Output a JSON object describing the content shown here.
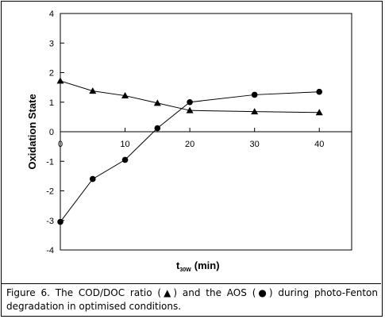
{
  "chart_data": {
    "type": "line",
    "xlabel_main": "t",
    "xlabel_sub": "30W",
    "xlabel_unit": "(min)",
    "ylabel": "Oxidation State",
    "xlim": [
      0,
      45
    ],
    "ylim": [
      -4,
      4
    ],
    "x_ticks": [
      0,
      10,
      20,
      30,
      40
    ],
    "y_ticks": [
      -4,
      -3,
      -2,
      -1,
      0,
      1,
      2,
      3,
      4
    ],
    "x_tick_labels": [
      "0",
      "10",
      "20",
      "30",
      "40"
    ],
    "y_tick_labels": [
      "-4",
      "-3",
      "-2",
      "-1",
      "0",
      "1",
      "2",
      "3",
      "4"
    ],
    "zero_line": true,
    "grid": false,
    "series": [
      {
        "marker": "triangle",
        "color": "#000000",
        "x": [
          0,
          5,
          10,
          15,
          20,
          30,
          40
        ],
        "y": [
          1.72,
          1.38,
          1.22,
          0.97,
          0.72,
          0.68,
          0.65
        ]
      },
      {
        "marker": "circle",
        "color": "#000000",
        "x": [
          0,
          5,
          10,
          15,
          20,
          30,
          40
        ],
        "y": [
          -3.05,
          -1.6,
          -0.95,
          0.12,
          1.0,
          1.25,
          1.35
        ]
      }
    ]
  },
  "caption": "Figure 6. The COD/DOC ratio (▲) and the AOS (●) during photo-Fenton degradation in optimised conditions."
}
